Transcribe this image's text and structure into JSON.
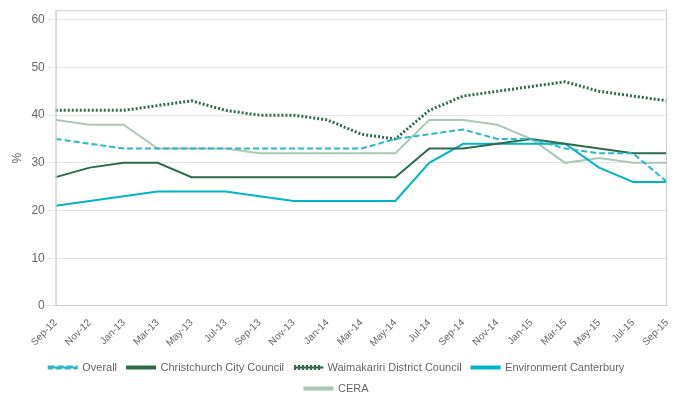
{
  "chart_data": {
    "type": "line",
    "y_label": "%",
    "categories": [
      "Sep-12",
      "Nov-12",
      "Jan-13",
      "Mar-13",
      "May-13",
      "Jul-13",
      "Sep-13",
      "Nov-13",
      "Jan-14",
      "Mar-14",
      "May-14",
      "Jul-14",
      "Sep-14",
      "Nov-14",
      "Jan-15",
      "Mar-15",
      "May-15",
      "Jul-15",
      "Sep-15"
    ],
    "series": [
      {
        "name": "Overall",
        "color": "#2ab8c8",
        "line_style": "dashed",
        "values": [
          35,
          34,
          33,
          33,
          33,
          33,
          33,
          33,
          33,
          33,
          35,
          36,
          37,
          35,
          35,
          33,
          32,
          32,
          26
        ]
      },
      {
        "name": "Christchurch City Council",
        "color": "#2d6b4a",
        "line_style": "solid",
        "values": [
          27,
          29,
          30,
          30,
          27,
          27,
          27,
          27,
          27,
          27,
          27,
          33,
          33,
          34,
          35,
          34,
          33,
          32,
          32
        ]
      },
      {
        "name": "Waimakariri District Council",
        "color": "#2d6b4a",
        "line_style": "dotted",
        "values": [
          41,
          41,
          41,
          42,
          43,
          41,
          40,
          40,
          39,
          36,
          35,
          41,
          44,
          45,
          46,
          47,
          45,
          44,
          43
        ]
      },
      {
        "name": "Environment Canterbury",
        "color": "#00b5c8",
        "line_style": "solid",
        "values": [
          21,
          22,
          23,
          24,
          24,
          24,
          23,
          22,
          22,
          22,
          22,
          30,
          34,
          34,
          34,
          34,
          29,
          26,
          26
        ]
      },
      {
        "name": "CERA",
        "color": "#aac8b5",
        "line_style": "solid",
        "values": [
          39,
          38,
          38,
          33,
          33,
          33,
          32,
          32,
          32,
          32,
          32,
          39,
          39,
          38,
          35,
          30,
          31,
          30,
          30
        ]
      }
    ],
    "ylim": [
      0,
      62
    ],
    "yticks": [
      0,
      10,
      20,
      30,
      40,
      50,
      60
    ],
    "grid": true,
    "legend": "bottom"
  }
}
